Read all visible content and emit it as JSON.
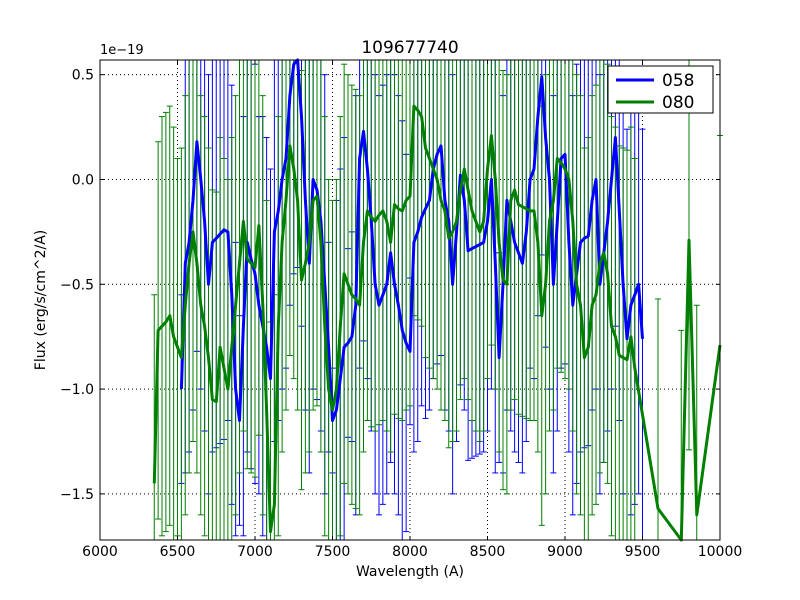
{
  "chart_data": {
    "type": "line",
    "title": "109677740",
    "xlabel": "Wavelength (A)",
    "ylabel": "Flux (erg/s/cm^2/A)",
    "offset_label": "1e−19",
    "xlim": [
      6000,
      10000
    ],
    "ylim": [
      -1.72,
      0.57
    ],
    "xticks": [
      6000,
      6500,
      7000,
      7500,
      8000,
      8500,
      9000,
      9500,
      10000
    ],
    "xtick_labels": [
      "6000",
      "6500",
      "7000",
      "7500",
      "8000",
      "8500",
      "9000",
      "9500",
      "10000"
    ],
    "yticks": [
      -1.5,
      -1.0,
      -0.5,
      0.0,
      0.5
    ],
    "ytick_labels": [
      "−1.5",
      "−1.0",
      "−0.5",
      "0.0",
      "0.5"
    ],
    "grid": true,
    "legend_position": "top-right",
    "series": [
      {
        "name": "058",
        "color": "#0000ff",
        "x": [
          6525,
          6550,
          6575,
          6600,
          6625,
          6650,
          6675,
          6700,
          6725,
          6750,
          6775,
          6800,
          6825,
          6850,
          6875,
          6900,
          6925,
          6950,
          6975,
          7000,
          7025,
          7050,
          7075,
          7100,
          7125,
          7150,
          7175,
          7200,
          7225,
          7250,
          7275,
          7300,
          7325,
          7350,
          7375,
          7400,
          7425,
          7450,
          7475,
          7500,
          7525,
          7550,
          7575,
          7600,
          7625,
          7650,
          7675,
          7700,
          7725,
          7750,
          7775,
          7800,
          7825,
          7850,
          7875,
          7900,
          7925,
          7950,
          7975,
          8000,
          8025,
          8050,
          8075,
          8100,
          8125,
          8150,
          8175,
          8200,
          8225,
          8250,
          8275,
          8300,
          8325,
          8350,
          8375,
          8400,
          8425,
          8450,
          8475,
          8500,
          8525,
          8550,
          8575,
          8600,
          8625,
          8650,
          8675,
          8700,
          8725,
          8750,
          8775,
          8800,
          8825,
          8850,
          8875,
          8900,
          8925,
          8950,
          8975,
          9000,
          9025,
          9050,
          9075,
          9100,
          9125,
          9150,
          9175,
          9200,
          9225,
          9250,
          9275,
          9300,
          9325,
          9350,
          9375,
          9400,
          9425,
          9450,
          9475,
          9500
        ],
        "values": [
          -1.0,
          -0.4,
          -0.3,
          -0.1,
          0.18,
          0.0,
          -0.2,
          -0.5,
          -0.3,
          -0.28,
          -0.26,
          -0.24,
          -0.25,
          -0.55,
          -1.0,
          -1.15,
          -0.7,
          -0.3,
          -0.38,
          -0.45,
          -0.6,
          -0.7,
          -0.8,
          -0.95,
          -0.25,
          -0.15,
          0.0,
          0.1,
          0.4,
          0.55,
          0.58,
          0.3,
          -0.1,
          -0.4,
          0.0,
          -0.05,
          -0.2,
          -0.5,
          -0.8,
          -1.15,
          -1.1,
          -0.95,
          -0.8,
          -0.78,
          -0.75,
          -0.6,
          0.1,
          0.23,
          0.05,
          -0.2,
          -0.5,
          -0.6,
          -0.55,
          -0.5,
          -0.35,
          -0.5,
          -0.6,
          -0.72,
          -0.78,
          -0.82,
          -0.3,
          -0.25,
          -0.18,
          -0.14,
          -0.1,
          0.05,
          0.12,
          0.16,
          -0.1,
          -0.2,
          -0.5,
          -0.25,
          0.02,
          -0.1,
          -0.34,
          -0.33,
          -0.32,
          -0.31,
          -0.3,
          -0.2,
          0.0,
          -0.4,
          -0.85,
          -0.5,
          -0.1,
          -0.2,
          -0.3,
          -0.35,
          -0.4,
          -0.25,
          0.0,
          0.05,
          0.3,
          0.49,
          0.2,
          0.0,
          -0.5,
          -0.2,
          0.1,
          0.12,
          -0.3,
          -0.6,
          -0.45,
          -0.3,
          -0.28,
          -0.27,
          -0.1,
          0.0,
          -0.5,
          -0.35,
          -0.2,
          0.0,
          0.2,
          -0.15,
          -0.5,
          -0.76,
          -0.6,
          -0.55,
          -0.5,
          -0.76
        ],
        "errors": [
          0.45,
          1.0,
          1.0,
          1.0,
          1.0,
          1.0,
          1.0,
          1.0,
          1.0,
          1.0,
          1.0,
          1.0,
          0.9,
          1.0,
          0.7,
          0.5,
          1.0,
          1.0,
          1.0,
          1.0,
          0.9,
          1.0,
          1.0,
          1.0,
          1.0,
          1.0,
          1.0,
          1.0,
          1.0,
          1.0,
          1.0,
          1.0,
          1.0,
          1.0,
          1.0,
          1.0,
          1.0,
          1.0,
          0.5,
          0.25,
          1.0,
          1.0,
          1.0,
          0.45,
          0.5,
          1.0,
          1.0,
          1.0,
          1.0,
          1.0,
          1.0,
          1.0,
          1.0,
          1.0,
          1.0,
          1.0,
          1.0,
          1.0,
          0.9,
          0.35,
          1.0,
          1.0,
          0.9,
          1.0,
          1.0,
          1.0,
          1.0,
          1.0,
          1.0,
          1.0,
          1.0,
          1.0,
          1.0,
          1.0,
          1.0,
          1.0,
          1.0,
          1.0,
          1.0,
          1.0,
          1.0,
          1.0,
          0.5,
          0.9,
          1.0,
          1.0,
          1.0,
          1.0,
          1.0,
          1.0,
          0.9,
          1.0,
          0.95,
          0.85,
          1.0,
          1.0,
          0.9,
          1.0,
          1.0,
          1.0,
          1.0,
          1.0,
          1.0,
          1.0,
          1.0,
          1.0,
          1.0,
          1.0,
          1.0,
          1.0,
          1.0,
          1.0,
          0.9,
          1.0,
          1.0,
          1.0,
          1.0,
          1.0,
          1.0,
          1.0
        ]
      },
      {
        "name": "080",
        "color": "#008000",
        "x": [
          6350,
          6375,
          6400,
          6425,
          6450,
          6475,
          6500,
          6525,
          6550,
          6575,
          6600,
          6625,
          6650,
          6675,
          6700,
          6725,
          6750,
          6775,
          6800,
          6825,
          6850,
          6875,
          6900,
          6925,
          6950,
          6975,
          7000,
          7025,
          7050,
          7075,
          7100,
          7125,
          7150,
          7175,
          7200,
          7225,
          7250,
          7275,
          7300,
          7325,
          7350,
          7375,
          7400,
          7425,
          7450,
          7475,
          7500,
          7525,
          7550,
          7575,
          7600,
          7625,
          7650,
          7675,
          7700,
          7725,
          7750,
          7775,
          7800,
          7825,
          7850,
          7875,
          7900,
          7925,
          7950,
          7975,
          8000,
          8025,
          8050,
          8075,
          8100,
          8125,
          8150,
          8175,
          8200,
          8225,
          8250,
          8275,
          8300,
          8325,
          8350,
          8375,
          8400,
          8425,
          8450,
          8475,
          8500,
          8525,
          8550,
          8575,
          8600,
          8625,
          8650,
          8675,
          8700,
          8725,
          8750,
          8775,
          8800,
          8825,
          8850,
          8875,
          8900,
          8925,
          8950,
          8975,
          9000,
          9025,
          9050,
          9075,
          9100,
          9125,
          9150,
          9175,
          9200,
          9225,
          9250,
          9275,
          9300,
          9325,
          9350,
          9375,
          9400,
          9425,
          9450,
          9600,
          9750,
          9800,
          9850,
          10000
        ],
        "values": [
          -1.45,
          -0.72,
          -0.7,
          -0.68,
          -0.65,
          -0.75,
          -0.8,
          -0.85,
          -0.6,
          -0.4,
          -0.25,
          -0.4,
          -0.6,
          -0.7,
          -0.85,
          -1.05,
          -1.06,
          -0.8,
          -0.9,
          -1.0,
          -0.8,
          -0.6,
          -0.4,
          -0.2,
          -0.38,
          -0.4,
          -0.42,
          -0.22,
          -0.6,
          -1.1,
          -1.68,
          -1.55,
          -0.7,
          -0.3,
          -0.1,
          0.16,
          0.05,
          -0.1,
          -0.48,
          -0.4,
          -0.3,
          -0.1,
          -0.08,
          -0.3,
          -0.7,
          -1.0,
          -1.1,
          -1.0,
          -0.7,
          -0.45,
          -0.5,
          -0.55,
          -0.57,
          -0.6,
          -0.3,
          -0.15,
          -0.18,
          -0.2,
          -0.17,
          -0.15,
          -0.2,
          -0.3,
          -0.12,
          -0.14,
          -0.15,
          -0.1,
          -0.08,
          0.35,
          0.33,
          0.3,
          0.15,
          0.1,
          0.05,
          0.0,
          -0.1,
          -0.15,
          -0.28,
          -0.25,
          -0.2,
          -0.05,
          0.05,
          -0.05,
          -0.15,
          -0.2,
          -0.25,
          -0.2,
          0.05,
          0.21,
          0.0,
          -0.3,
          -0.48,
          -0.5,
          -0.1,
          -0.05,
          -0.12,
          -0.13,
          -0.14,
          -0.15,
          -0.15,
          -0.3,
          -0.65,
          -0.5,
          -0.2,
          -0.1,
          0.1,
          0.08,
          0.05,
          0.0,
          -0.2,
          -0.5,
          -0.6,
          -0.85,
          -0.8,
          -0.6,
          -0.55,
          -0.4,
          -0.35,
          -0.45,
          -0.7,
          -0.75,
          -0.84,
          -0.85,
          -0.86,
          -0.75,
          -0.9,
          -1.57,
          -1.72,
          -0.29,
          -1.6,
          -0.79
        ],
        "errors": [
          0.9,
          0.9,
          1.0,
          1.0,
          1.0,
          1.0,
          0.9,
          1.0,
          1.0,
          1.0,
          1.0,
          1.0,
          1.0,
          1.0,
          1.0,
          1.0,
          1.0,
          1.0,
          1.0,
          1.0,
          1.0,
          1.0,
          1.0,
          1.0,
          1.0,
          1.0,
          1.0,
          1.0,
          1.0,
          1.0,
          1.0,
          1.0,
          1.0,
          1.0,
          1.0,
          1.0,
          1.0,
          1.0,
          1.0,
          1.0,
          1.0,
          1.0,
          1.0,
          1.0,
          1.0,
          1.0,
          1.0,
          1.0,
          1.0,
          1.0,
          1.0,
          1.0,
          1.0,
          1.0,
          1.0,
          1.0,
          1.0,
          1.0,
          1.0,
          1.0,
          1.0,
          1.0,
          1.0,
          1.0,
          1.0,
          1.0,
          1.0,
          1.0,
          1.0,
          1.0,
          1.0,
          1.0,
          1.0,
          1.0,
          1.0,
          1.0,
          1.0,
          1.0,
          1.0,
          1.0,
          1.0,
          1.0,
          1.0,
          1.0,
          1.0,
          1.0,
          1.0,
          1.0,
          1.0,
          1.0,
          1.0,
          1.0,
          1.0,
          1.0,
          1.0,
          1.0,
          1.0,
          1.0,
          1.0,
          1.0,
          1.0,
          1.0,
          1.0,
          1.0,
          1.0,
          1.0,
          1.0,
          1.0,
          1.0,
          1.0,
          1.0,
          1.0,
          1.0,
          1.0,
          1.0,
          1.0,
          1.0,
          1.0,
          1.0,
          1.0,
          1.0,
          1.0,
          1.0,
          1.0,
          1.0,
          1.0,
          1.0,
          1.0,
          1.0,
          1.0
        ]
      }
    ]
  }
}
